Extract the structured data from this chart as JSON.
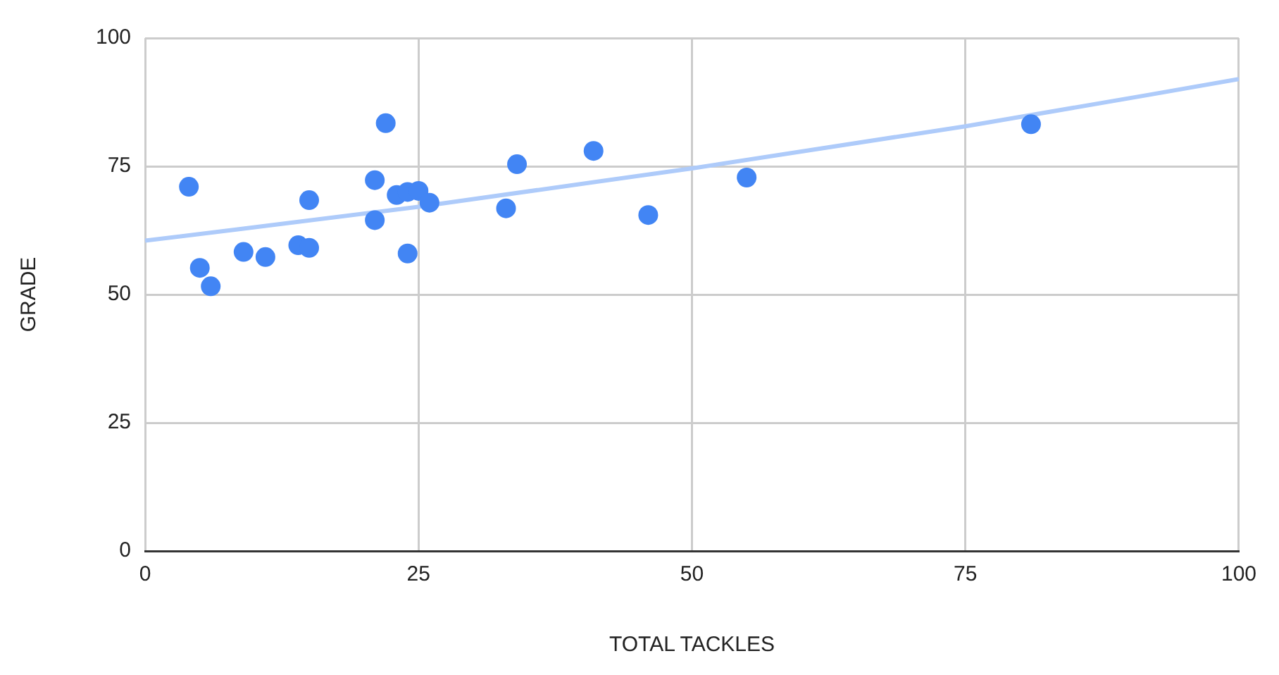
{
  "chart_data": {
    "type": "scatter",
    "xlabel": "TOTAL TACKLES",
    "ylabel": "GRADE",
    "xlim": [
      0,
      100
    ],
    "ylim": [
      0,
      100
    ],
    "xticks": [
      0,
      25,
      50,
      75,
      100
    ],
    "yticks": [
      0,
      25,
      50,
      75,
      100
    ],
    "grid": true,
    "legend": false,
    "series": [
      {
        "marker": "circle",
        "color": "#4285f4",
        "x": [
          4,
          5,
          6,
          9,
          11,
          14,
          15,
          15,
          21,
          21,
          22,
          23,
          24,
          24,
          25,
          26,
          33,
          34,
          41,
          46,
          55,
          81
        ],
        "values": [
          71,
          55.2,
          51.6,
          58.3,
          57.3,
          59.6,
          59.1,
          68.4,
          72.3,
          64.5,
          83.4,
          69.4,
          70,
          58,
          70.2,
          67.9,
          66.8,
          75.4,
          78,
          65.5,
          72.8,
          83.2
        ]
      },
      {
        "type": "line",
        "color": "#aecbfa",
        "x": [
          0,
          25,
          50,
          75,
          100
        ],
        "values": [
          60.5,
          67.1,
          74.6,
          82.8,
          92
        ]
      }
    ]
  }
}
